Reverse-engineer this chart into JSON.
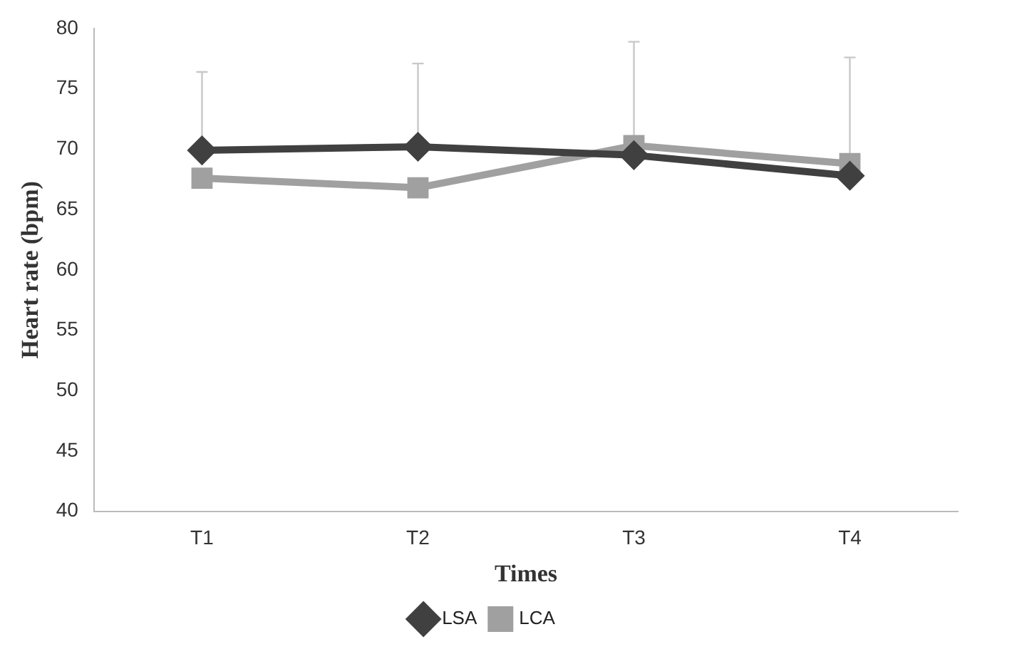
{
  "chart_data": {
    "type": "line",
    "xlabel": "Times",
    "ylabel": "Heart rate (bpm)",
    "categories": [
      "T1",
      "T2",
      "T3",
      "T4"
    ],
    "series": [
      {
        "name": "LSA",
        "color": "#404040",
        "marker": "diamond",
        "values": [
          69.9,
          70.2,
          69.5,
          67.8
        ],
        "errors": [
          [
            69.9,
            76.4
          ],
          [
            70.2,
            77.1
          ],
          [
            69.5,
            78.9
          ],
          [
            67.8,
            77.6
          ]
        ]
      },
      {
        "name": "LCA",
        "color": "#a0a0a0",
        "marker": "square",
        "values": [
          67.6,
          66.8,
          70.3,
          68.8
        ]
      }
    ],
    "ylim": [
      40,
      80
    ],
    "yticks": [
      40,
      45,
      50,
      55,
      60,
      65,
      70,
      75,
      80
    ],
    "grid": false,
    "legend": "bottom"
  }
}
